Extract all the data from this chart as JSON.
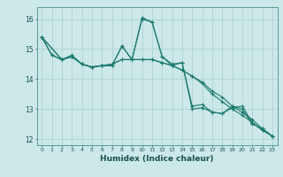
{
  "title": "",
  "xlabel": "Humidex (Indice chaleur)",
  "ylabel": "",
  "bg_color": "#cce8e8",
  "grid_color": "#aacfcf",
  "line_color": "#1a7a6e",
  "xlim": [
    -0.5,
    23.5
  ],
  "ylim": [
    11.8,
    16.4
  ],
  "yticks": [
    12,
    13,
    14,
    15,
    16
  ],
  "xticks": [
    0,
    1,
    2,
    3,
    4,
    5,
    6,
    7,
    8,
    9,
    10,
    11,
    12,
    13,
    14,
    15,
    16,
    17,
    18,
    19,
    20,
    21,
    22,
    23
  ],
  "line1": [
    [
      0,
      15.4
    ],
    [
      1,
      14.8
    ],
    [
      2,
      14.65
    ],
    [
      3,
      14.75
    ],
    [
      4,
      14.5
    ],
    [
      5,
      14.4
    ],
    [
      6,
      14.45
    ],
    [
      7,
      14.45
    ],
    [
      8,
      15.1
    ],
    [
      9,
      14.65
    ],
    [
      10,
      16.0
    ],
    [
      11,
      15.9
    ],
    [
      12,
      14.75
    ],
    [
      13,
      14.45
    ],
    [
      14,
      14.55
    ],
    [
      15,
      13.1
    ],
    [
      16,
      13.15
    ],
    [
      17,
      12.9
    ],
    [
      18,
      12.85
    ],
    [
      19,
      13.05
    ],
    [
      20,
      13.1
    ],
    [
      21,
      12.55
    ],
    [
      22,
      12.3
    ],
    [
      23,
      12.1
    ]
  ],
  "line2": [
    [
      0,
      15.4
    ],
    [
      1,
      14.8
    ],
    [
      2,
      14.65
    ],
    [
      3,
      14.8
    ],
    [
      4,
      14.5
    ],
    [
      5,
      14.4
    ],
    [
      6,
      14.45
    ],
    [
      7,
      14.45
    ],
    [
      8,
      15.1
    ],
    [
      9,
      14.65
    ],
    [
      10,
      16.05
    ],
    [
      11,
      15.9
    ],
    [
      12,
      14.75
    ],
    [
      13,
      14.5
    ],
    [
      14,
      14.55
    ],
    [
      15,
      13.0
    ],
    [
      16,
      13.05
    ],
    [
      17,
      12.9
    ],
    [
      18,
      12.85
    ],
    [
      19,
      13.1
    ],
    [
      20,
      13.0
    ],
    [
      21,
      12.5
    ],
    [
      22,
      12.35
    ],
    [
      23,
      12.1
    ]
  ],
  "line3": [
    [
      0,
      15.4
    ],
    [
      2,
      14.65
    ],
    [
      3,
      14.75
    ],
    [
      4,
      14.5
    ],
    [
      5,
      14.4
    ],
    [
      6,
      14.45
    ],
    [
      7,
      14.5
    ],
    [
      8,
      14.65
    ],
    [
      9,
      14.65
    ],
    [
      10,
      14.65
    ],
    [
      11,
      14.65
    ],
    [
      12,
      14.55
    ],
    [
      13,
      14.45
    ],
    [
      14,
      14.3
    ],
    [
      15,
      14.1
    ],
    [
      16,
      13.9
    ],
    [
      17,
      13.6
    ],
    [
      18,
      13.4
    ],
    [
      19,
      13.1
    ],
    [
      20,
      12.9
    ],
    [
      21,
      12.65
    ],
    [
      22,
      12.35
    ],
    [
      23,
      12.1
    ]
  ],
  "line4": [
    [
      0,
      15.4
    ],
    [
      2,
      14.65
    ],
    [
      3,
      14.75
    ],
    [
      4,
      14.5
    ],
    [
      5,
      14.4
    ],
    [
      6,
      14.45
    ],
    [
      7,
      14.5
    ],
    [
      8,
      14.65
    ],
    [
      9,
      14.65
    ],
    [
      10,
      14.65
    ],
    [
      11,
      14.65
    ],
    [
      12,
      14.55
    ],
    [
      13,
      14.45
    ],
    [
      14,
      14.3
    ],
    [
      15,
      14.1
    ],
    [
      16,
      13.85
    ],
    [
      17,
      13.5
    ],
    [
      18,
      13.25
    ],
    [
      19,
      13.0
    ],
    [
      20,
      12.8
    ],
    [
      21,
      12.55
    ],
    [
      22,
      12.3
    ],
    [
      23,
      12.1
    ]
  ]
}
